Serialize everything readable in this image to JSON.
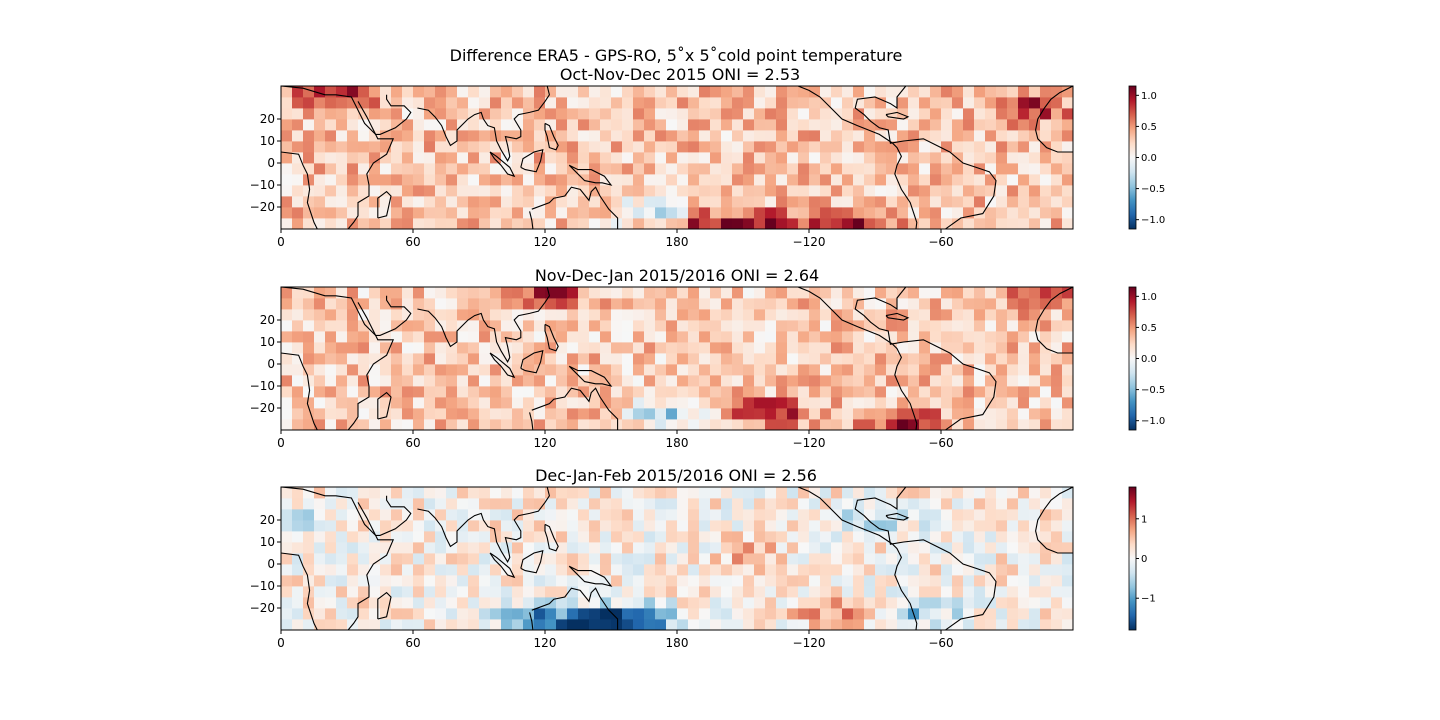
{
  "figure": {
    "suptitle_line1": "Difference ERA5 - GPS-RO, 5˚x 5˚cold point temperature"
  },
  "colormap": {
    "name": "RdBu_r",
    "stops": [
      "#053061",
      "#2166ac",
      "#4393c3",
      "#92c5de",
      "#d1e5f0",
      "#f7f7f7",
      "#fddbc7",
      "#f4a582",
      "#d6604d",
      "#b2182b",
      "#67001f"
    ]
  },
  "chart_data": [
    {
      "type": "heatmap",
      "title": "Oct-Nov-Dec 2015 ONI = 2.53",
      "xticks": [
        "0",
        "60",
        "120",
        "180",
        "−120",
        "−60"
      ],
      "yticks": [
        "20",
        "10",
        "0",
        "−10",
        "−20"
      ],
      "grid_resolution_deg": 5,
      "lon_range": [
        0,
        360
      ],
      "lat_range": [
        -30,
        35
      ],
      "clim": [
        -1.15,
        1.15
      ],
      "colorbar_ticks": [
        {
          "value": 1.0,
          "label": "1.0"
        },
        {
          "value": 0.5,
          "label": "0.5"
        },
        {
          "value": 0.0,
          "label": "0.0"
        },
        {
          "value": -0.5,
          "label": "−0.5"
        },
        {
          "value": -1.0,
          "label": "−1.0"
        }
      ],
      "mean_anomaly": 0.3,
      "hotspots": [
        {
          "lon": 25,
          "lat": 32,
          "value": 1.0
        },
        {
          "lon": 190,
          "lat": -27,
          "value": 0.9
        },
        {
          "lon": 220,
          "lat": -27,
          "value": 0.9
        },
        {
          "lon": 260,
          "lat": -27,
          "value": 1.0
        },
        {
          "lon": 340,
          "lat": 25,
          "value": 0.9
        },
        {
          "lon": 170,
          "lat": -22,
          "value": -0.4
        }
      ]
    },
    {
      "type": "heatmap",
      "title": "Nov-Dec-Jan 2015/2016 ONI = 2.64",
      "xticks": [
        "0",
        "60",
        "120",
        "180",
        "−120",
        "−60"
      ],
      "yticks": [
        "20",
        "10",
        "0",
        "−10",
        "−20"
      ],
      "grid_resolution_deg": 5,
      "lon_range": [
        0,
        360
      ],
      "lat_range": [
        -30,
        35
      ],
      "clim": [
        -1.15,
        1.15
      ],
      "colorbar_ticks": [
        {
          "value": 1.0,
          "label": "1.0"
        },
        {
          "value": 0.5,
          "label": "0.5"
        },
        {
          "value": 0.0,
          "label": "0.0"
        },
        {
          "value": -0.5,
          "label": "−0.5"
        },
        {
          "value": -1.0,
          "label": "−1.0"
        }
      ],
      "mean_anomaly": 0.28,
      "hotspots": [
        {
          "lon": 120,
          "lat": 32,
          "value": 0.9
        },
        {
          "lon": 220,
          "lat": -22,
          "value": 1.0
        },
        {
          "lon": 285,
          "lat": -27,
          "value": 1.05
        },
        {
          "lon": 345,
          "lat": 30,
          "value": 0.8
        },
        {
          "lon": 175,
          "lat": -22,
          "value": -0.4
        }
      ]
    },
    {
      "type": "heatmap",
      "title": "Dec-Jan-Feb 2015/2016 ONI = 2.56",
      "xticks": [
        "0",
        "60",
        "120",
        "180",
        "−120",
        "−60"
      ],
      "yticks": [
        "20",
        "10",
        "0",
        "−10",
        "−20"
      ],
      "grid_resolution_deg": 5,
      "lon_range": [
        0,
        360
      ],
      "lat_range": [
        -30,
        35
      ],
      "clim": [
        -1.8,
        1.8
      ],
      "colorbar_ticks": [
        {
          "value": 1,
          "label": "1"
        },
        {
          "value": 0,
          "label": "0"
        },
        {
          "value": -1,
          "label": "−1"
        }
      ],
      "mean_anomaly": 0.1,
      "hotspots": [
        {
          "lon": 160,
          "lat": -25,
          "value": -1.7
        },
        {
          "lon": 115,
          "lat": -25,
          "value": -1.2
        },
        {
          "lon": 140,
          "lat": -27,
          "value": -1.3
        },
        {
          "lon": 250,
          "lat": -22,
          "value": 0.9
        },
        {
          "lon": 215,
          "lat": 5,
          "value": 0.6
        },
        {
          "lon": 290,
          "lat": -22,
          "value": -0.7
        },
        {
          "lon": 270,
          "lat": 20,
          "value": -0.5
        },
        {
          "lon": 10,
          "lat": 20,
          "value": -0.3
        }
      ]
    }
  ]
}
